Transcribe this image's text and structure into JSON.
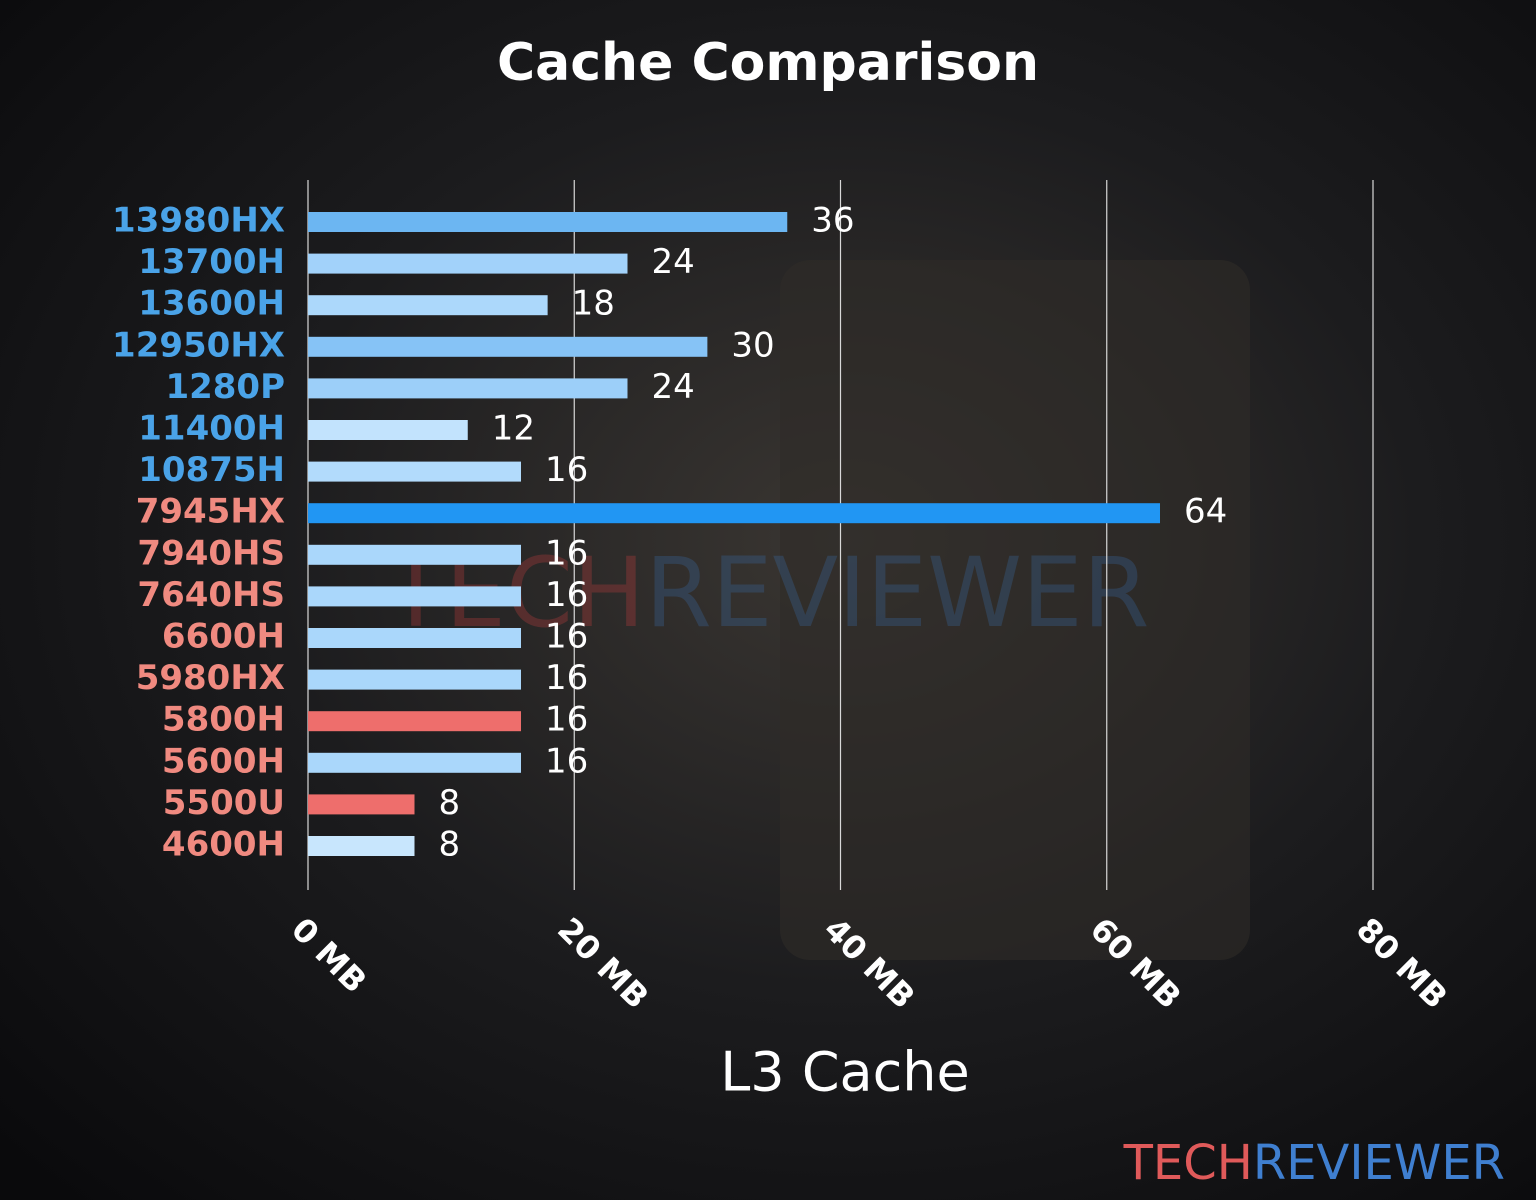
{
  "chart_data": {
    "type": "barh",
    "title": "Cache Comparison",
    "xlabel": "L3 Cache",
    "categories": [
      "13980HX",
      "13700H",
      "13600H",
      "12950HX",
      "1280P",
      "11400H",
      "10875H",
      "7945HX",
      "7940HS",
      "7640HS",
      "6600H",
      "5980HX",
      "5800H",
      "5600H",
      "5500U",
      "4600H"
    ],
    "values": [
      36,
      24,
      18,
      30,
      24,
      12,
      16,
      64,
      16,
      16,
      16,
      16,
      16,
      16,
      8,
      8
    ],
    "colors": [
      "#6cb6f2",
      "#a2d2fa",
      "#acd8fb",
      "#86c3f6",
      "#9ccff9",
      "#c2e3fd",
      "#b2dbfc",
      "#2196f3",
      "#aad7fb",
      "#aad7fb",
      "#aad7fb",
      "#aad7fb",
      "#ee6e6c",
      "#aad7fb",
      "#ee6e6c",
      "#c8e6fd"
    ],
    "label_colors": [
      "#4aa3e8",
      "#4aa3e8",
      "#4aa3e8",
      "#4aa3e8",
      "#4aa3e8",
      "#4aa3e8",
      "#4aa3e8",
      "#f08a80",
      "#f08a80",
      "#f08a80",
      "#f08a80",
      "#f08a80",
      "#f08a80",
      "#f08a80",
      "#f08a80",
      "#f08a80"
    ],
    "xlim": [
      0,
      80
    ],
    "xticks": [
      {
        "value": 0,
        "label": "0 MB"
      },
      {
        "value": 20,
        "label": "20 MB"
      },
      {
        "value": 40,
        "label": "40 MB"
      },
      {
        "value": 60,
        "label": "60 MB"
      },
      {
        "value": 80,
        "label": "80 MB"
      }
    ],
    "grid": true
  },
  "brand": {
    "first": "TECH",
    "second": "REVIEWER"
  }
}
